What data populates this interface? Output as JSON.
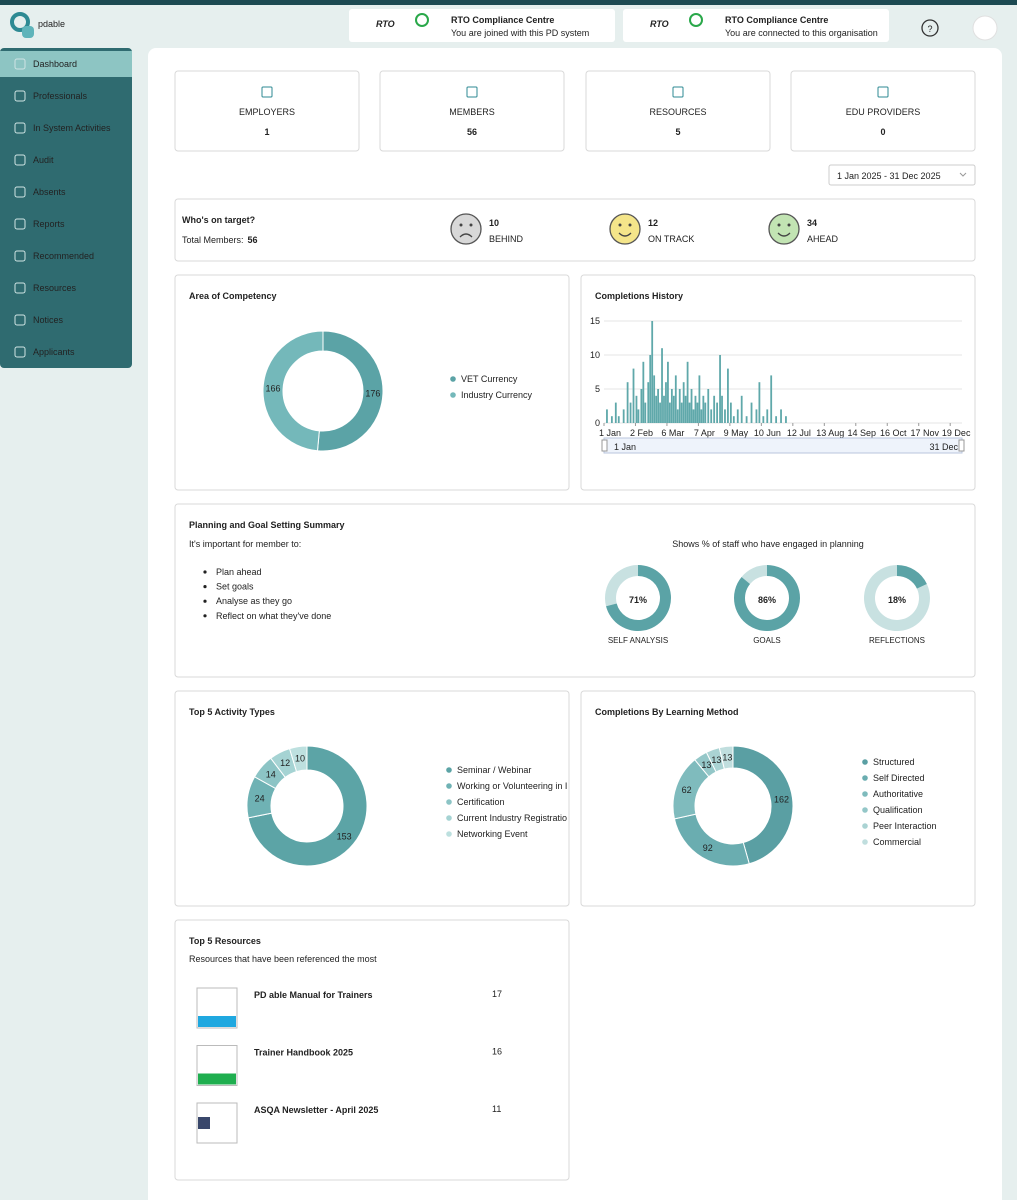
{
  "header": {
    "logo": "pdable",
    "help": "?",
    "cards": [
      {
        "logo": "RTO",
        "title": "RTO Compliance Centre",
        "subtitle": "You are joined with this PD system"
      },
      {
        "logo": "RTO",
        "title": "RTO Compliance Centre",
        "subtitle": "You are connected to this organisation"
      }
    ]
  },
  "sidebar": {
    "active": 0,
    "items": [
      "Dashboard",
      "Professionals",
      "In System Activities",
      "Audit",
      "Absents",
      "Reports",
      "Recommended",
      "Resources",
      "Notices",
      "Applicants"
    ]
  },
  "stats": [
    {
      "label": "EMPLOYERS",
      "value": 1
    },
    {
      "label": "MEMBERS",
      "value": 56
    },
    {
      "label": "RESOURCES",
      "value": 5
    },
    {
      "label": "EDU PROVIDERS",
      "value": 0
    }
  ],
  "date_range": "1 Jan 2025 - 31 Dec 2025",
  "target": {
    "title": "Who's on target?",
    "total_label": "Total Members:",
    "total": 56,
    "groups": [
      {
        "value": 10,
        "label": "BEHIND"
      },
      {
        "value": 12,
        "label": "ON TRACK"
      },
      {
        "value": 34,
        "label": "AHEAD"
      }
    ]
  },
  "planning": {
    "title": "Planning and Goal Setting Summary",
    "intro": "It's important for member to:",
    "bullets": [
      "Plan ahead",
      "Set goals",
      "Analyse as they go",
      "Reflect on what they've done"
    ]
  },
  "chart_data": [
    {
      "type": "donut",
      "title": "Area of Competency",
      "categories": [
        "VET Currency",
        "Industry Currency"
      ],
      "values": [
        176,
        166
      ],
      "colors": [
        "#5ba3a6",
        "#74b8ba"
      ]
    },
    {
      "type": "bar",
      "title": "Completions History",
      "x": [
        3,
        8,
        12,
        15,
        20,
        24,
        27,
        30,
        33,
        35,
        38,
        40,
        42,
        45,
        47,
        49,
        51,
        53,
        55,
        57,
        59,
        61,
        63,
        65,
        67,
        69,
        71,
        73,
        75,
        77,
        79,
        81,
        83,
        85,
        87,
        89,
        91,
        93,
        95,
        97,
        99,
        101,
        103,
        106,
        109,
        112,
        115,
        118,
        120,
        123,
        126,
        129,
        132,
        136,
        140,
        145,
        150,
        155,
        158,
        162,
        166,
        170,
        175,
        180,
        185
      ],
      "values": [
        2,
        1,
        3,
        1,
        2,
        6,
        3,
        8,
        4,
        2,
        5,
        9,
        3,
        6,
        10,
        15,
        7,
        4,
        5,
        3,
        11,
        4,
        6,
        9,
        3,
        5,
        4,
        7,
        2,
        5,
        3,
        6,
        4,
        9,
        3,
        5,
        2,
        4,
        3,
        7,
        2,
        4,
        3,
        5,
        2,
        4,
        3,
        10,
        4,
        2,
        8,
        3,
        1,
        2,
        4,
        1,
        3,
        2,
        6,
        1,
        2,
        7,
        1,
        2,
        1
      ],
      "xlim": [
        0,
        364
      ],
      "xticks": [
        {
          "value": 0,
          "label": "1 Jan"
        },
        {
          "value": 32,
          "label": "2 Feb"
        },
        {
          "value": 64,
          "label": "6 Mar"
        },
        {
          "value": 96,
          "label": "7 Apr"
        },
        {
          "value": 128,
          "label": "9 May"
        },
        {
          "value": 160,
          "label": "10 Jun"
        },
        {
          "value": 192,
          "label": "12 Jul"
        },
        {
          "value": 224,
          "label": "13 Aug"
        },
        {
          "value": 256,
          "label": "14 Sep"
        },
        {
          "value": 288,
          "label": "16 Oct"
        },
        {
          "value": 320,
          "label": "17 Nov"
        },
        {
          "value": 352,
          "label": "19 Dec"
        }
      ],
      "ylim": [
        0,
        15
      ],
      "yticks": [
        0,
        5,
        10,
        15
      ],
      "grid": true,
      "color": "#5fa8aa",
      "zoom_labels": [
        "1 Jan",
        "31 Dec"
      ]
    },
    {
      "type": "gauge",
      "subtitle": "Shows % of staff who have engaged in planning",
      "categories": [
        "SELF ANALYSIS",
        "GOALS",
        "REFLECTIONS"
      ],
      "values": [
        71,
        86,
        18
      ],
      "value_labels": [
        "71%",
        "86%",
        "18%"
      ],
      "ylim": [
        0,
        100
      ],
      "color": "#5ba3a6",
      "track_color": "#c8e1e1"
    },
    {
      "type": "donut",
      "title": "Top 5 Activity Types",
      "categories": [
        "Seminar / Webinar",
        "Working or Volunteering in I",
        "Certification",
        "Current Industry Registratio",
        "Networking Event"
      ],
      "values": [
        153,
        24,
        14,
        12,
        10
      ],
      "colors": [
        "#5ca4a6",
        "#6fb2b4",
        "#8cc4c5",
        "#a5d3d3",
        "#bde0df"
      ]
    },
    {
      "type": "donut",
      "title": "Completions By Learning Method",
      "categories": [
        "Structured",
        "Self Directed",
        "Authoritative",
        "Qualification",
        "Peer Interaction",
        "Commercial"
      ],
      "values": [
        162,
        92,
        62,
        13,
        13,
        13
      ],
      "colors": [
        "#5a9fa3",
        "#6aadb0",
        "#7fbbbd",
        "#94c7c8",
        "#aad3d3",
        "#c0dede"
      ]
    }
  ],
  "resources": {
    "title": "Top 5 Resources",
    "subtitle": "Resources that have been referenced the most",
    "items": [
      {
        "name": "PD able Manual for Trainers",
        "count": 17
      },
      {
        "name": "Trainer Handbook 2025",
        "count": 16
      },
      {
        "name": "ASQA Newsletter - April 2025",
        "count": 11
      }
    ]
  }
}
